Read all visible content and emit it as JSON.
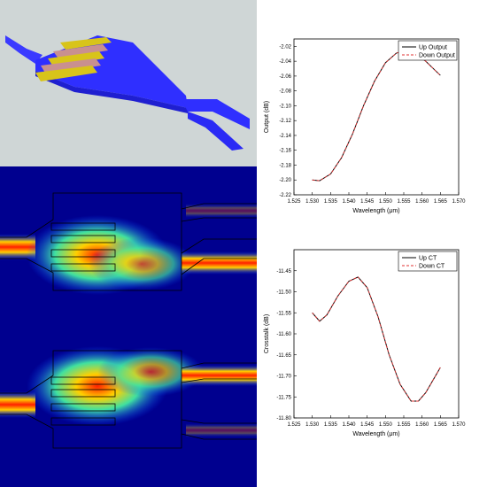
{
  "chart_data": [
    {
      "type": "line",
      "xlabel": "Wavelength (μm)",
      "ylabel": "Output (dB)",
      "xlim": [
        1.525,
        1.57
      ],
      "ylim": [
        -2.22,
        -2.01
      ],
      "xticks": [
        "1.525",
        "1.530",
        "1.535",
        "1.540",
        "1.545",
        "1.550",
        "1.555",
        "1.560",
        "1.565",
        "1.570"
      ],
      "yticks": [
        "-2.02",
        "-2.04",
        "-2.06",
        "-2.08",
        "-2.10",
        "-2.12",
        "-2.14",
        "-2.16",
        "-2.18",
        "-2.20",
        "-2.22"
      ],
      "legend_position": "top-right",
      "grid": false,
      "x": [
        1.53,
        1.532,
        1.535,
        1.538,
        1.541,
        1.544,
        1.547,
        1.55,
        1.553,
        1.5555,
        1.558,
        1.561,
        1.5635,
        1.565
      ],
      "series": [
        {
          "name": "Up Output",
          "color": "#000000",
          "style": "solid",
          "values": [
            -2.2,
            -2.201,
            -2.192,
            -2.17,
            -2.138,
            -2.1,
            -2.067,
            -2.042,
            -2.029,
            -2.026,
            -2.03,
            -2.04,
            -2.052,
            -2.059
          ]
        },
        {
          "name": "Down Output",
          "color": "#e03030",
          "style": "dashed",
          "values": [
            -2.2,
            -2.201,
            -2.192,
            -2.17,
            -2.138,
            -2.1,
            -2.067,
            -2.042,
            -2.029,
            -2.026,
            -2.03,
            -2.04,
            -2.052,
            -2.059
          ]
        }
      ]
    },
    {
      "type": "line",
      "xlabel": "Wavelength (μm)",
      "ylabel": "Crosstalk (dB)",
      "xlim": [
        1.525,
        1.57
      ],
      "ylim": [
        -11.8,
        -11.4
      ],
      "xticks": [
        "1.525",
        "1.530",
        "1.535",
        "1.540",
        "1.545",
        "1.550",
        "1.555",
        "1.560",
        "1.565",
        "1.570"
      ],
      "yticks": [
        "-11.45",
        "-11.50",
        "-11.55",
        "-11.60",
        "-11.65",
        "-11.70",
        "-11.75",
        "-11.80"
      ],
      "legend_position": "top-right",
      "grid": false,
      "x": [
        1.53,
        1.532,
        1.534,
        1.537,
        1.54,
        1.5425,
        1.545,
        1.548,
        1.551,
        1.554,
        1.557,
        1.559,
        1.561,
        1.563,
        1.565
      ],
      "series": [
        {
          "name": "Up CT",
          "color": "#000000",
          "style": "solid",
          "values": [
            -11.55,
            -11.57,
            -11.555,
            -11.51,
            -11.475,
            -11.465,
            -11.49,
            -11.56,
            -11.65,
            -11.72,
            -11.76,
            -11.76,
            -11.74,
            -11.71,
            -11.68
          ]
        },
        {
          "name": "Down CT",
          "color": "#e03030",
          "style": "dashed",
          "values": [
            -11.55,
            -11.57,
            -11.555,
            -11.51,
            -11.475,
            -11.465,
            -11.49,
            -11.56,
            -11.65,
            -11.72,
            -11.76,
            -11.76,
            -11.74,
            -11.71,
            -11.68
          ]
        }
      ]
    }
  ],
  "colors": {
    "device_background": "#cfd6d6",
    "waveguide": "#2c2cff",
    "electrode": "#d4c21a",
    "field_background": "#00008f",
    "field_hot": "#ff2000"
  }
}
